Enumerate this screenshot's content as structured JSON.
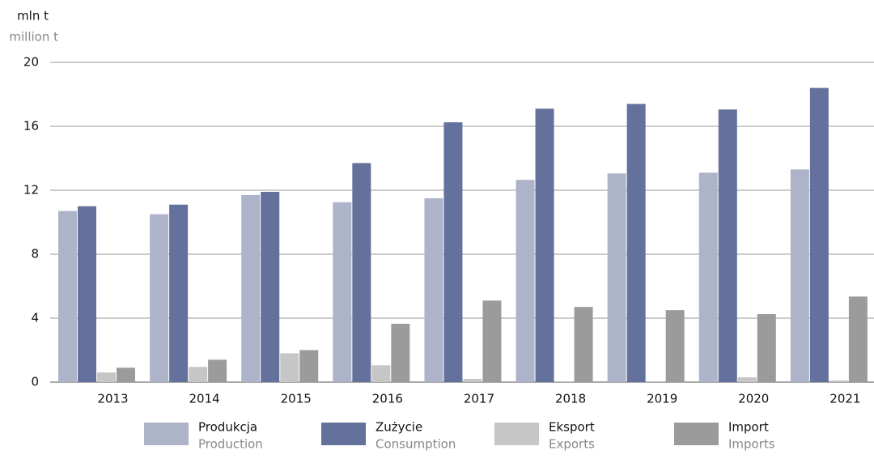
{
  "chart_data": {
    "type": "bar",
    "ylabel": "mln t",
    "ylabel_en": "million t",
    "categories": [
      "2013",
      "2014",
      "2015",
      "2016",
      "2017",
      "2018",
      "2019",
      "2020",
      "2021"
    ],
    "series": [
      {
        "name": "Produkcja",
        "name_en": "Production",
        "color": "#adb3c8",
        "values": [
          10.7,
          10.5,
          11.7,
          11.25,
          11.5,
          12.65,
          13.05,
          13.1,
          13.3
        ]
      },
      {
        "name": "Zużycie",
        "name_en": "Consumption",
        "color": "#64719c",
        "values": [
          11.0,
          11.1,
          11.9,
          13.7,
          16.25,
          17.1,
          17.4,
          17.05,
          18.4
        ]
      },
      {
        "name": "Eksport",
        "name_en": "Exports",
        "color": "#c6c6c6",
        "values": [
          0.6,
          0.95,
          1.8,
          1.05,
          0.2,
          0.05,
          0.05,
          0.3,
          0.1
        ]
      },
      {
        "name": "Import",
        "name_en": "Imports",
        "color": "#9b9b9b",
        "values": [
          0.9,
          1.4,
          2.0,
          3.65,
          5.1,
          4.7,
          4.5,
          4.25,
          5.35
        ]
      }
    ],
    "ylim": [
      0,
      20
    ],
    "yticks": [
      0,
      4,
      8,
      12,
      16,
      20
    ],
    "grid": true
  }
}
